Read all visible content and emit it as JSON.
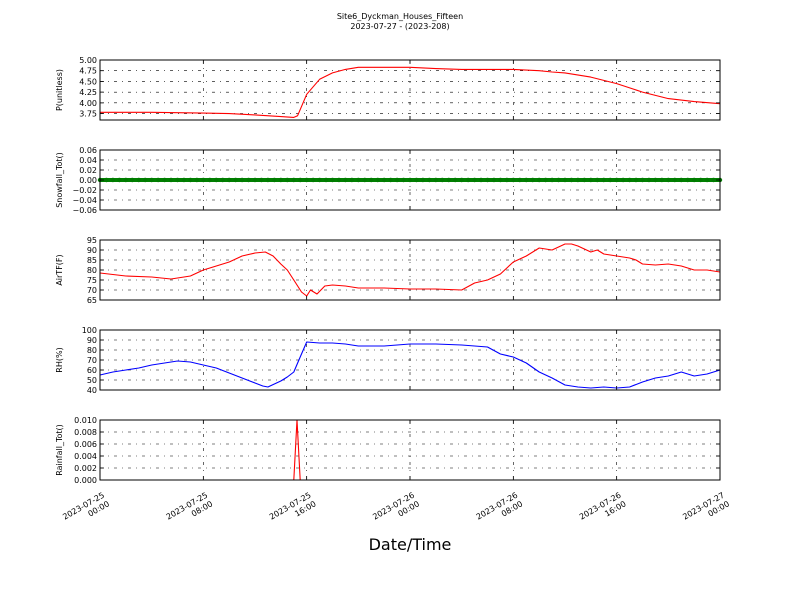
{
  "figure": {
    "title": "Site6_Dyckman_Houses_Fifteen",
    "subtitle": "2023-07-27 - (2023-208)",
    "xlabel": "Date/Time"
  },
  "chart_data": [
    {
      "type": "line",
      "ylabel": "P(unitless)",
      "ylim": [
        3.6,
        5.0
      ],
      "yticks": [
        3.75,
        4.0,
        4.25,
        4.5,
        4.75,
        5.0
      ],
      "ytick_labels": [
        "3.75",
        "4.00",
        "4.25",
        "4.50",
        "4.75",
        "5.00"
      ],
      "grid": true,
      "series": [
        {
          "color": "#ff0000",
          "x_hours": [
            0,
            4,
            8,
            10,
            12,
            14,
            15,
            15.3,
            16,
            17,
            18,
            19,
            20,
            24,
            26,
            28,
            30,
            32,
            34,
            35,
            36,
            38,
            40,
            42,
            44,
            46,
            48
          ],
          "values": [
            3.78,
            3.78,
            3.76,
            3.75,
            3.72,
            3.68,
            3.66,
            3.7,
            4.2,
            4.55,
            4.7,
            4.78,
            4.83,
            4.83,
            4.8,
            4.78,
            4.78,
            4.78,
            4.75,
            4.72,
            4.7,
            4.6,
            4.45,
            4.25,
            4.1,
            4.03,
            3.98
          ]
        }
      ]
    },
    {
      "type": "line",
      "ylabel": "Snowfall_Tot()",
      "ylim": [
        -0.06,
        0.06
      ],
      "yticks": [
        -0.06,
        -0.04,
        -0.02,
        0.0,
        0.02,
        0.04,
        0.06
      ],
      "ytick_labels": [
        "−0.06",
        "−0.04",
        "−0.02",
        "0.00",
        "0.02",
        "0.04",
        "0.06"
      ],
      "grid": true,
      "series": [
        {
          "color": "#008000",
          "x_hours": [
            0,
            48
          ],
          "values": [
            0,
            0
          ]
        }
      ]
    },
    {
      "type": "line",
      "ylabel": "AirTF(F)",
      "ylim": [
        65,
        95
      ],
      "yticks": [
        65,
        70,
        75,
        80,
        85,
        90,
        95
      ],
      "ytick_labels": [
        "65",
        "70",
        "75",
        "80",
        "85",
        "90",
        "95"
      ],
      "grid": true,
      "series": [
        {
          "color": "#ff0000",
          "x_hours": [
            0,
            2,
            4,
            5.5,
            6,
            6.5,
            7,
            8,
            9,
            10,
            11,
            12,
            12.8,
            13.4,
            14,
            14.5,
            15,
            15.6,
            16,
            16.3,
            16.8,
            17.4,
            18,
            19,
            20,
            22,
            24,
            26,
            28,
            29,
            30,
            31,
            32,
            33,
            34,
            35,
            36,
            36.5,
            37,
            38,
            38.5,
            39,
            40,
            41,
            41.5,
            42,
            43,
            44,
            45,
            46,
            47,
            48
          ],
          "values": [
            78.5,
            77,
            76.5,
            75.5,
            76,
            76.5,
            77,
            80,
            82,
            84,
            87,
            88.5,
            89,
            87,
            83,
            80,
            75,
            69,
            67,
            70,
            68,
            72,
            72.5,
            72,
            71,
            71,
            70.5,
            70.5,
            70,
            73.5,
            75,
            78,
            84,
            87,
            91,
            90,
            93,
            93,
            92,
            89,
            90,
            88,
            87,
            86,
            85,
            83,
            82.5,
            83,
            82,
            80,
            80,
            79
          ]
        }
      ]
    },
    {
      "type": "line",
      "ylabel": "RH(%)",
      "ylim": [
        40,
        100
      ],
      "yticks": [
        40,
        50,
        60,
        70,
        80,
        90,
        100
      ],
      "ytick_labels": [
        "40",
        "50",
        "60",
        "70",
        "80",
        "90",
        "100"
      ],
      "grid": true,
      "series": [
        {
          "color": "#0000ff",
          "x_hours": [
            0,
            1,
            2,
            3,
            4,
            5,
            6,
            7,
            8,
            9,
            10,
            11,
            12,
            12.6,
            13,
            14,
            14.5,
            15,
            15.4,
            16,
            17,
            18,
            19,
            20,
            22,
            24,
            26,
            28,
            30,
            31,
            32,
            33,
            34,
            35,
            36,
            37,
            38,
            39,
            40,
            41,
            42,
            43,
            44,
            45,
            46,
            47,
            48
          ],
          "values": [
            55,
            58,
            60,
            62,
            65,
            67,
            69,
            68,
            65,
            62,
            57,
            52,
            47,
            44,
            43,
            49,
            53,
            58,
            70,
            88,
            87,
            87,
            86,
            84,
            84,
            86,
            86,
            85,
            83,
            76,
            73,
            67,
            58,
            52,
            45,
            43,
            42,
            43,
            42,
            43,
            48,
            52,
            54,
            58,
            54,
            56,
            60
          ]
        }
      ]
    },
    {
      "type": "line",
      "ylabel": "Rainfall_Tot()",
      "ylim": [
        0,
        0.01
      ],
      "yticks": [
        0.0,
        0.002,
        0.004,
        0.006,
        0.008,
        0.01
      ],
      "ytick_labels": [
        "0.000",
        "0.002",
        "0.004",
        "0.006",
        "0.008",
        "0.010"
      ],
      "grid": true,
      "series": [
        {
          "color": "#ff0000",
          "x_hours": [
            0,
            15.0,
            15.25,
            15.5,
            48
          ],
          "values": [
            0,
            0,
            0.01,
            0,
            0
          ]
        }
      ]
    }
  ],
  "x_axis": {
    "xlim_hours": [
      0,
      48
    ],
    "ticks_hours": [
      0,
      8,
      16,
      24,
      32,
      40,
      48
    ],
    "tick_labels": [
      [
        "2023-07-25",
        "00:00"
      ],
      [
        "2023-07-25",
        "08:00"
      ],
      [
        "2023-07-25",
        "16:00"
      ],
      [
        "2023-07-26",
        "00:00"
      ],
      [
        "2023-07-26",
        "08:00"
      ],
      [
        "2023-07-26",
        "16:00"
      ],
      [
        "2023-07-27",
        "00:00"
      ]
    ]
  }
}
